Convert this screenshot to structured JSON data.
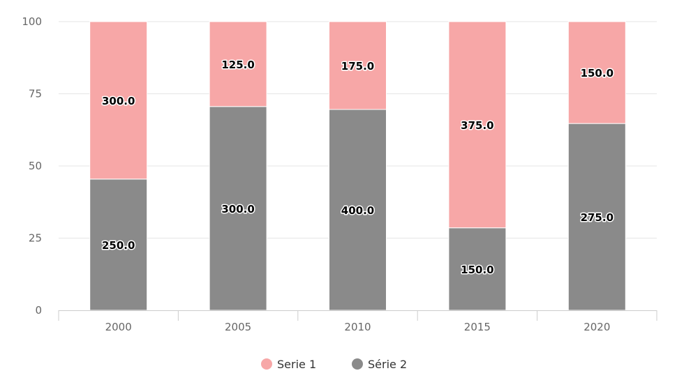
{
  "chart_data": {
    "type": "bar",
    "stacked": true,
    "normalized": "percent",
    "categories": [
      "2000",
      "2005",
      "2010",
      "2015",
      "2020"
    ],
    "series": [
      {
        "name": "Serie 1",
        "values": [
          300,
          125,
          175,
          375,
          150
        ],
        "color": "#f7a7a7"
      },
      {
        "name": "Série 2",
        "values": [
          250,
          300,
          400,
          150,
          275
        ],
        "color": "#8a8a8a"
      }
    ],
    "ylim": [
      0,
      100
    ],
    "yticks": [
      "0",
      "25",
      "50",
      "75",
      "100"
    ],
    "grid": true,
    "legend": "bottom-center",
    "data_label_format": "one decimal"
  }
}
